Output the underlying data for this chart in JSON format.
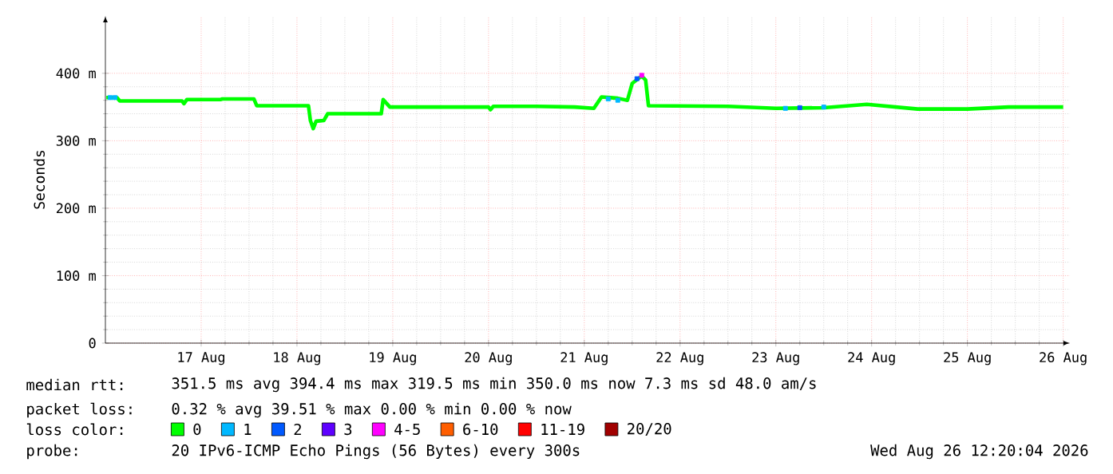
{
  "chart_data": {
    "type": "line",
    "ylabel": "Seconds",
    "legend_title": "loss color:",
    "legend": "bottom",
    "grid": true,
    "marker": "none",
    "xlim": [
      "2026-08-16T12:00",
      "2026-08-26T13:41"
    ],
    "ylim": [
      0,
      485
    ],
    "xticks": [
      {
        "value": "2026-08-17T12:00",
        "label": "17 Aug"
      },
      {
        "value": "2026-08-18T12:00",
        "label": "18 Aug"
      },
      {
        "value": "2026-08-19T12:00",
        "label": "19 Aug"
      },
      {
        "value": "2026-08-20T12:00",
        "label": "20 Aug"
      },
      {
        "value": "2026-08-21T12:00",
        "label": "21 Aug"
      },
      {
        "value": "2026-08-22T12:00",
        "label": "22 Aug"
      },
      {
        "value": "2026-08-23T12:00",
        "label": "23 Aug"
      },
      {
        "value": "2026-08-24T12:00",
        "label": "24 Aug"
      },
      {
        "value": "2026-08-25T12:00",
        "label": "25 Aug"
      },
      {
        "value": "2026-08-26T12:00",
        "label": "26 Aug"
      }
    ],
    "yticks": [
      0,
      {
        "value": 100,
        "label": "100 m"
      },
      {
        "value": 200,
        "label": "200 m"
      },
      {
        "value": 300,
        "label": "300 m"
      },
      {
        "value": 400,
        "label": "400 m"
      }
    ],
    "series": [
      {
        "name": "0",
        "color": "#00ff00",
        "x": [
          "2026-08-16T12:14",
          "2026-08-16T14:53",
          "2026-08-16T15:36",
          "2026-08-17T07:12",
          "2026-08-17T07:41",
          "2026-08-17T08:24",
          "2026-08-17T16:48",
          "2026-08-17T17:17",
          "2026-08-18T01:12",
          "2026-08-18T01:55",
          "2026-08-18T14:53",
          "2026-08-18T15:22",
          "2026-08-18T16:05",
          "2026-08-18T16:48",
          "2026-08-18T18:43",
          "2026-08-18T19:41",
          "2026-08-19T09:07",
          "2026-08-19T09:36",
          "2026-08-19T11:17",
          "2026-08-20T00:00",
          "2026-08-20T12:00",
          "2026-08-20T12:29",
          "2026-08-20T13:12",
          "2026-08-21T00:00",
          "2026-08-21T09:36",
          "2026-08-21T14:24",
          "2026-08-21T16:19",
          "2026-08-21T20:24",
          "2026-08-21T22:48",
          "2026-08-22T00:00",
          "2026-08-22T02:24",
          "2026-08-22T03:22",
          "2026-08-22T04:05",
          "2026-08-23T00:00",
          "2026-08-23T12:00",
          "2026-08-24T00:00",
          "2026-08-24T10:48",
          "2026-08-24T23:31",
          "2026-08-25T12:00",
          "2026-08-25T22:19",
          "2026-08-26T12:00"
        ],
        "values": [
          364,
          364,
          359,
          359,
          355,
          361,
          361,
          362,
          362,
          352,
          352,
          330,
          318,
          329,
          330,
          340,
          340,
          361,
          350,
          350,
          350,
          346,
          351,
          351,
          350,
          348,
          365,
          363,
          360,
          385,
          396,
          390,
          352,
          351,
          348,
          349,
          354,
          347,
          347,
          350,
          350
        ]
      },
      {
        "name": "1",
        "color": "#00b8ff",
        "type": "scatter",
        "marker": "square",
        "x": [
          "2026-08-16T13:12",
          "2026-08-16T14:24",
          "2026-08-21T18:00",
          "2026-08-21T20:24",
          "2026-08-23T14:24",
          "2026-08-24T00:00"
        ],
        "values": [
          364,
          364,
          362,
          360,
          348,
          350
        ]
      },
      {
        "name": "2",
        "color": "#0059ff",
        "type": "scatter",
        "marker": "square",
        "x": [
          "2026-08-22T01:12",
          "2026-08-23T18:00"
        ],
        "values": [
          392,
          349
        ]
      },
      {
        "name": "3",
        "color": "#5e00ff"
      },
      {
        "name": "4-5",
        "color": "#ff00ff",
        "type": "scatter",
        "marker": "square",
        "x": [
          "2026-08-22T02:24"
        ],
        "values": [
          397
        ]
      },
      {
        "name": "6-10",
        "color": "#ff5e00"
      },
      {
        "name": "11-19",
        "color": "#ff0000"
      },
      {
        "name": "20/20",
        "color": "#a10000"
      }
    ],
    "annotations": [
      "median rtt:",
      "351.5 ms avg  394.4 ms max  319.5 ms min  350.0 ms now  7.3 ms sd  48.0   am/s",
      "packet loss:",
      "0.32 % avg  39.51 % max  0.00 % min  0.00 % now",
      "probe:",
      "20 IPv6-ICMP Echo Pings (56 Bytes) every 300s",
      "Wed Aug 26 12:20:04 2026"
    ]
  }
}
